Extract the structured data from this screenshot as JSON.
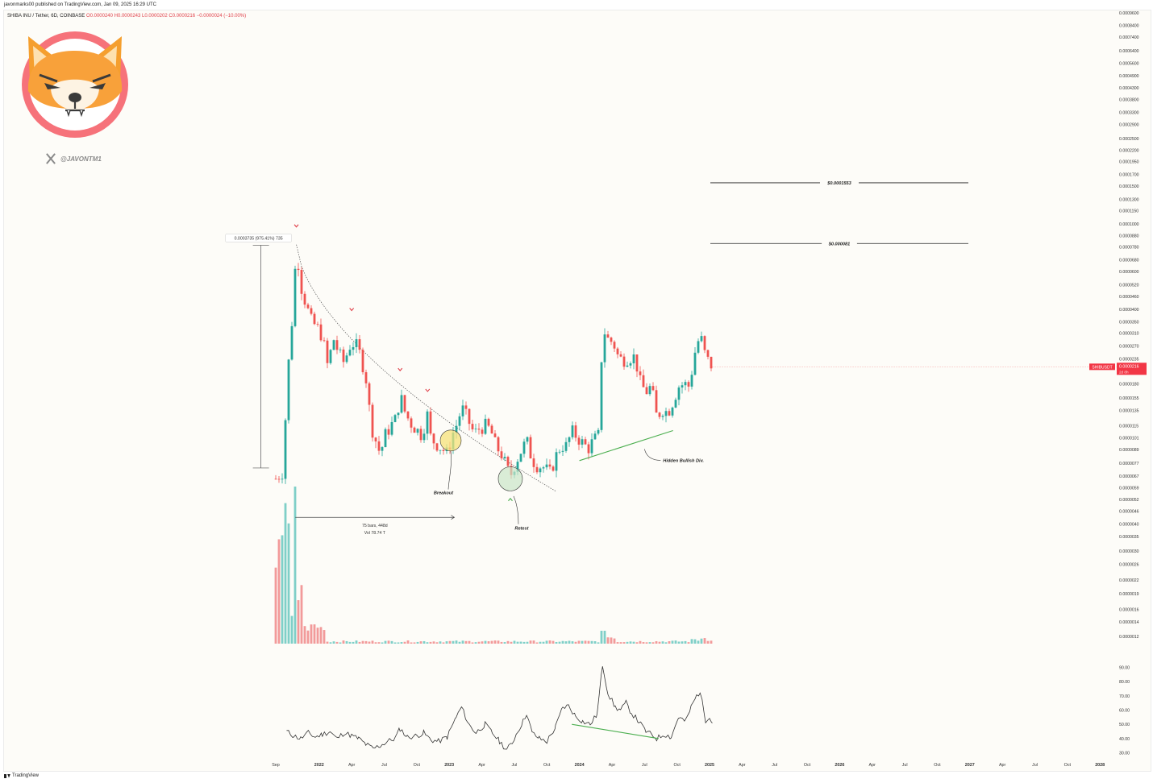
{
  "header": {
    "published": "javonmarks00 published on TradingView.com, Jan 09, 2025 16:29 UTC"
  },
  "symbol_bar": {
    "name": "SHIBA INU / Tether, 6D, COINBASE",
    "ohlc": "O0.0000240 H0.0000243 L0.0000202 C0.0000216 −0.0000024 (−10.00%)"
  },
  "branding": {
    "handle": "@JAVONTM1",
    "logo_icon": "shiba-inu-logo",
    "footer": "TradingView"
  },
  "chart_data": [
    {
      "type": "candlestick",
      "panel": "price",
      "title": "",
      "price_axis": {
        "scale": "log",
        "tick_labels": [
          "0.0009600",
          "0.0008400",
          "0.0007400",
          "0.0006400",
          "0.0005600",
          "0.0004900",
          "0.0004300",
          "0.0003800",
          "0.0003300",
          "0.0002900",
          "0.0002500",
          "0.0002200",
          "0.0001950",
          "0.0001700",
          "0.0001500",
          "0.0001300",
          "0.0001150",
          "0.0001000",
          "0.0000880",
          "0.0000780",
          "0.0000680",
          "0.0000600",
          "0.0000520",
          "0.0000460",
          "0.0000400",
          "0.0000350",
          "0.0000310",
          "0.0000270",
          "0.0000235",
          "0.0000180",
          "0.0000155",
          "0.0000135",
          "0.0000115",
          "0.0000101",
          "0.0000089",
          "0.0000077",
          "0.0000067",
          "0.0000059",
          "0.0000052",
          "0.0000046",
          "0.0000040",
          "0.0000035",
          "0.0000030",
          "0.0000026",
          "0.0000022",
          "0.0000019",
          "0.0000016",
          "0.0000014",
          "0.0000012"
        ]
      },
      "time_axis": {
        "tick_labels": [
          "Sep",
          "2022",
          "Apr",
          "Jul",
          "Oct",
          "2023",
          "Apr",
          "Jul",
          "Oct",
          "2024",
          "Apr",
          "Jul",
          "Oct",
          "2025",
          "Apr",
          "Jul",
          "Oct",
          "2026",
          "Apr",
          "Jul",
          "Oct",
          "2027",
          "Apr",
          "Jul",
          "Oct",
          "2028"
        ],
        "bold_labels": [
          "2022",
          "2023",
          "2024",
          "2025",
          "2026",
          "2027",
          "2028"
        ]
      },
      "price_path": [
        [
          "2021-09-01",
          6.5e-06
        ],
        [
          "2021-09-20",
          7e-06
        ],
        [
          "2021-10-05",
          2.1e-05
        ],
        [
          "2021-10-20",
          4.3e-05
        ],
        [
          "2021-10-28",
          8e-05
        ],
        [
          "2021-11-10",
          5.2e-05
        ],
        [
          "2021-11-25",
          4.2e-05
        ],
        [
          "2021-12-10",
          3.5e-05
        ],
        [
          "2021-12-25",
          3.3e-05
        ],
        [
          "2022-01-10",
          3e-05
        ],
        [
          "2022-01-25",
          2.15e-05
        ],
        [
          "2022-02-10",
          2.95e-05
        ],
        [
          "2022-02-25",
          2.5e-05
        ],
        [
          "2022-03-10",
          2.25e-05
        ],
        [
          "2022-03-25",
          2.7e-05
        ],
        [
          "2022-04-10",
          2.8e-05
        ],
        [
          "2022-04-25",
          2.45e-05
        ],
        [
          "2022-05-10",
          1.95e-05
        ],
        [
          "2022-05-25",
          1.15e-05
        ],
        [
          "2022-06-10",
          9.5e-06
        ],
        [
          "2022-06-20",
          8.5e-06
        ],
        [
          "2022-07-05",
          1.05e-05
        ],
        [
          "2022-07-20",
          1.15e-05
        ],
        [
          "2022-08-05",
          1.25e-05
        ],
        [
          "2022-08-15",
          1.6e-05
        ],
        [
          "2022-08-30",
          1.3e-05
        ],
        [
          "2022-09-15",
          1.18e-05
        ],
        [
          "2022-10-01",
          1.1e-05
        ],
        [
          "2022-10-15",
          1.04e-05
        ],
        [
          "2022-10-30",
          1.3e-05
        ],
        [
          "2022-11-10",
          1e-05
        ],
        [
          "2022-11-25",
          9.5e-06
        ],
        [
          "2022-12-10",
          9e-06
        ],
        [
          "2022-12-25",
          8.5e-06
        ],
        [
          "2023-01-10",
          1.05e-05
        ],
        [
          "2023-01-25",
          1.2e-05
        ],
        [
          "2023-02-05",
          1.4e-05
        ],
        [
          "2023-02-20",
          1.25e-05
        ],
        [
          "2023-03-10",
          1.05e-05
        ],
        [
          "2023-03-25",
          1.12e-05
        ],
        [
          "2023-04-10",
          1.15e-05
        ],
        [
          "2023-04-25",
          1.1e-05
        ],
        [
          "2023-05-10",
          9.2e-06
        ],
        [
          "2023-05-25",
          8.5e-06
        ],
        [
          "2023-06-10",
          7.3e-06
        ],
        [
          "2023-06-20",
          6.7e-06
        ],
        [
          "2023-07-05",
          7.8e-06
        ],
        [
          "2023-07-20",
          8.8e-06
        ],
        [
          "2023-08-05",
          9.8e-06
        ],
        [
          "2023-08-20",
          8e-06
        ],
        [
          "2023-09-05",
          7.5e-06
        ],
        [
          "2023-09-20",
          7.4e-06
        ],
        [
          "2023-10-10",
          6.9e-06
        ],
        [
          "2023-10-25",
          8.2e-06
        ],
        [
          "2023-11-10",
          9.3e-06
        ],
        [
          "2023-11-25",
          9.2e-06
        ],
        [
          "2023-12-10",
          1.08e-05
        ],
        [
          "2023-12-25",
          1.02e-05
        ],
        [
          "2024-01-10",
          9.5e-06
        ],
        [
          "2024-01-25",
          9e-06
        ],
        [
          "2024-02-10",
          9.8e-06
        ],
        [
          "2024-02-25",
          1.04e-05
        ],
        [
          "2024-03-05",
          3.3e-05
        ],
        [
          "2024-03-20",
          2.9e-05
        ],
        [
          "2024-04-05",
          2.8e-05
        ],
        [
          "2024-04-20",
          2.35e-05
        ],
        [
          "2024-05-05",
          2.35e-05
        ],
        [
          "2024-05-20",
          2.4e-05
        ],
        [
          "2024-06-05",
          2.4e-05
        ],
        [
          "2024-06-20",
          1.8e-05
        ],
        [
          "2024-07-05",
          1.65e-05
        ],
        [
          "2024-07-20",
          1.75e-05
        ],
        [
          "2024-08-05",
          1.25e-05
        ],
        [
          "2024-08-20",
          1.38e-05
        ],
        [
          "2024-09-05",
          1.32e-05
        ],
        [
          "2024-09-20",
          1.5e-05
        ],
        [
          "2024-10-05",
          1.75e-05
        ],
        [
          "2024-10-20",
          1.8e-05
        ],
        [
          "2024-11-05",
          1.75e-05
        ],
        [
          "2024-11-20",
          2.5e-05
        ],
        [
          "2024-12-05",
          3.05e-05
        ],
        [
          "2024-12-20",
          2.4e-05
        ],
        [
          "2025-01-01",
          2.25e-05
        ],
        [
          "2025-01-09",
          2.16e-05
        ]
      ],
      "current_price": {
        "label": "SHIBUSDT",
        "value": "0.0000216",
        "countdown": "2d 8h"
      },
      "horizontal_levels": [
        {
          "label": "$0.0001553",
          "price": 0.0001553
        },
        {
          "label": "$0.000081",
          "price": 8.1e-05
        }
      ],
      "annotations": {
        "range_label": "0.0003735 (975.41%) 735",
        "bars_label": "75 bars, 448d",
        "vol_label": "Vol 78.74 T",
        "breakout": "Breakout",
        "retest": "Retest",
        "hidden_div": "Hidden Bullish Div."
      },
      "colors": {
        "up": "#26a69a",
        "down": "#ef5350",
        "trendline": "#555555",
        "divergence": "#4caf50",
        "breakout_circle": "#f5e27a",
        "retest_circle": "#c9e6c8",
        "marker": "#e0404a",
        "current_price_bg": "#f23645"
      }
    },
    {
      "type": "line",
      "panel": "rsi",
      "title": "",
      "y_axis": {
        "tick_labels": [
          "90.00",
          "80.00",
          "70.00",
          "60.00",
          "50.00",
          "40.00",
          "30.00"
        ],
        "ylim": [
          28,
          92
        ]
      },
      "values": [
        [
          "2021-10-01",
          45
        ],
        [
          "2021-10-20",
          42
        ],
        [
          "2021-11-10",
          40
        ],
        [
          "2021-12-01",
          44
        ],
        [
          "2021-12-20",
          41
        ],
        [
          "2022-01-10",
          43
        ],
        [
          "2022-02-01",
          45
        ],
        [
          "2022-02-20",
          40
        ],
        [
          "2022-03-10",
          44
        ],
        [
          "2022-04-01",
          42
        ],
        [
          "2022-04-20",
          40
        ],
        [
          "2022-05-10",
          36
        ],
        [
          "2022-05-30",
          33
        ],
        [
          "2022-06-20",
          35
        ],
        [
          "2022-07-10",
          38
        ],
        [
          "2022-08-01",
          40
        ],
        [
          "2022-08-15",
          47
        ],
        [
          "2022-09-05",
          41
        ],
        [
          "2022-10-01",
          42
        ],
        [
          "2022-10-20",
          44
        ],
        [
          "2022-11-10",
          39
        ],
        [
          "2022-12-01",
          38
        ],
        [
          "2022-12-25",
          41
        ],
        [
          "2023-01-20",
          55
        ],
        [
          "2023-02-05",
          62
        ],
        [
          "2023-02-25",
          50
        ],
        [
          "2023-03-15",
          44
        ],
        [
          "2023-04-10",
          50
        ],
        [
          "2023-04-30",
          44
        ],
        [
          "2023-05-20",
          38
        ],
        [
          "2023-06-10",
          32
        ],
        [
          "2023-06-25",
          37
        ],
        [
          "2023-07-10",
          45
        ],
        [
          "2023-07-25",
          52
        ],
        [
          "2023-08-05",
          58
        ],
        [
          "2023-08-20",
          44
        ],
        [
          "2023-09-10",
          40
        ],
        [
          "2023-10-01",
          38
        ],
        [
          "2023-10-25",
          48
        ],
        [
          "2023-11-15",
          62
        ],
        [
          "2023-12-01",
          63
        ],
        [
          "2023-12-20",
          56
        ],
        [
          "2024-01-10",
          52
        ],
        [
          "2024-02-01",
          50
        ],
        [
          "2024-02-20",
          57
        ],
        [
          "2024-03-05",
          92
        ],
        [
          "2024-03-20",
          72
        ],
        [
          "2024-04-10",
          62
        ],
        [
          "2024-04-25",
          60
        ],
        [
          "2024-05-10",
          65
        ],
        [
          "2024-05-25",
          58
        ],
        [
          "2024-06-15",
          52
        ],
        [
          "2024-07-05",
          45
        ],
        [
          "2024-07-25",
          42
        ],
        [
          "2024-08-05",
          40
        ],
        [
          "2024-08-25",
          43
        ],
        [
          "2024-09-15",
          41
        ],
        [
          "2024-10-05",
          55
        ],
        [
          "2024-10-25",
          52
        ],
        [
          "2024-11-10",
          62
        ],
        [
          "2024-11-25",
          70
        ],
        [
          "2024-12-05",
          73
        ],
        [
          "2024-12-20",
          53
        ],
        [
          "2025-01-01",
          56
        ],
        [
          "2025-01-09",
          51
        ]
      ]
    }
  ]
}
